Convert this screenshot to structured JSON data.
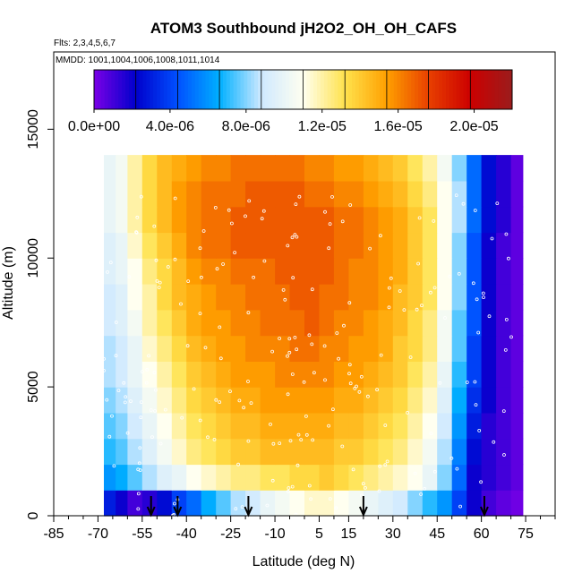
{
  "chart_data": {
    "type": "heatmap",
    "title": "ATOM3 Southbound jH2O2_OH_OH_CAFS",
    "flights_label": "Flts: 2,3,4,5,6,7",
    "dates_label": "MMDD: 1001,1004,1006,1008,1011,1014",
    "xlabel": "Latitude (deg N)",
    "ylabel": "Altitude (m)",
    "xlim": [
      -85,
      85
    ],
    "ylim": [
      0,
      18000
    ],
    "x_ticks_major": [
      -85,
      -70,
      -55,
      -40,
      -25,
      -10,
      5,
      15,
      30,
      45,
      60,
      75
    ],
    "x_ticks_minor": [
      -80,
      -75,
      -65,
      -60,
      -50,
      -45,
      -35,
      -30,
      -20,
      -15,
      -5,
      0,
      10,
      20,
      25,
      35,
      40,
      50,
      55,
      65,
      70,
      80,
      85
    ],
    "y_ticks": [
      0,
      5000,
      10000,
      15000
    ],
    "colorbar": {
      "range": [
        0,
        2.2e-05
      ],
      "tick_values": [
        0,
        4e-06,
        8e-06,
        1.2e-05,
        1.6e-05,
        2e-05
      ],
      "tick_labels": [
        "0.0e+00",
        "4.0e-06",
        "8.0e-06",
        "1.2e-05",
        "1.6e-05",
        "2.0e-05"
      ],
      "colors": [
        "#7a00e6",
        "#0000cc",
        "#0050ff",
        "#00b0ff",
        "#cfe9ff",
        "#fffff0",
        "#ffe24d",
        "#ffa000",
        "#e84000",
        "#cc0000",
        "#9b1c1c"
      ]
    },
    "profile_markers_lat": [
      -52,
      -43,
      -19,
      20,
      61
    ],
    "latitude_bins": [
      -68,
      -64,
      -60,
      -55,
      -50,
      -45,
      -40,
      -35,
      -30,
      -25,
      -20,
      -15,
      -10,
      -5,
      0,
      5,
      10,
      15,
      20,
      25,
      30,
      35,
      40,
      45,
      50,
      55,
      60,
      65,
      70
    ],
    "altitude_bins": [
      0,
      1000,
      2000,
      3000,
      4000,
      5000,
      6000,
      7000,
      8000,
      9000,
      10000,
      11000,
      12000,
      13000
    ],
    "values_e6": [
      [
        3.0,
        2.0,
        1.0,
        1.5,
        2.5,
        4.0,
        5.0,
        6.5,
        7.5,
        8.5,
        9.0,
        10.0,
        10.5,
        11.0,
        11.5,
        11.5,
        11.0,
        10.5,
        10.0,
        9.5,
        9.0,
        8.0,
        7.0,
        6.0,
        4.0,
        2.0,
        1.0,
        0.5,
        0.2
      ],
      [
        6.0,
        6.5,
        7.5,
        8.5,
        9.5,
        10.0,
        11.0,
        11.5,
        12.0,
        12.5,
        12.5,
        13.0,
        13.0,
        13.5,
        13.5,
        14.0,
        13.5,
        13.0,
        12.5,
        12.0,
        11.5,
        11.0,
        10.0,
        8.0,
        5.0,
        2.0,
        1.5,
        1.0,
        0.5
      ],
      [
        7.0,
        7.5,
        8.5,
        9.5,
        10.5,
        11.5,
        12.5,
        13.0,
        13.5,
        14.0,
        14.0,
        14.5,
        14.5,
        14.5,
        14.5,
        14.5,
        14.0,
        14.0,
        13.5,
        13.0,
        12.5,
        11.5,
        10.5,
        8.5,
        5.5,
        2.5,
        1.5,
        1.0,
        0.5
      ],
      [
        7.5,
        8.0,
        9.0,
        10.0,
        11.0,
        12.0,
        13.0,
        13.5,
        14.0,
        14.5,
        14.5,
        15.0,
        15.0,
        15.0,
        15.0,
        15.0,
        14.5,
        14.5,
        14.0,
        13.5,
        13.0,
        12.0,
        11.0,
        9.0,
        6.0,
        3.0,
        1.5,
        1.0,
        0.5
      ],
      [
        8.0,
        8.5,
        9.5,
        10.5,
        11.5,
        12.5,
        13.5,
        14.0,
        14.5,
        15.0,
        15.0,
        15.5,
        15.5,
        15.5,
        15.5,
        15.5,
        15.0,
        15.0,
        14.5,
        14.0,
        13.5,
        12.5,
        11.5,
        9.5,
        6.5,
        3.5,
        2.0,
        1.0,
        0.5
      ],
      [
        8.5,
        9.0,
        10.0,
        11.0,
        12.0,
        13.0,
        14.0,
        14.5,
        15.0,
        15.5,
        15.5,
        15.5,
        16.0,
        16.0,
        16.0,
        16.0,
        15.5,
        15.5,
        15.0,
        14.5,
        14.0,
        13.0,
        12.0,
        10.0,
        7.0,
        4.0,
        2.0,
        1.0,
        0.5
      ],
      [
        8.5,
        9.0,
        10.0,
        11.5,
        12.5,
        13.5,
        14.5,
        15.0,
        15.5,
        15.5,
        16.0,
        16.0,
        16.0,
        16.5,
        16.5,
        16.0,
        16.0,
        15.5,
        15.5,
        15.0,
        14.0,
        13.5,
        12.5,
        10.5,
        7.5,
        4.0,
        2.0,
        1.0,
        0.5
      ],
      [
        9.0,
        9.5,
        10.5,
        12.0,
        13.0,
        14.0,
        15.0,
        15.5,
        15.5,
        16.0,
        16.0,
        16.5,
        16.5,
        16.5,
        17.0,
        16.5,
        16.0,
        16.0,
        15.5,
        15.0,
        14.5,
        13.5,
        12.5,
        10.5,
        7.5,
        4.5,
        2.0,
        1.0,
        0.5
      ],
      [
        9.0,
        9.5,
        11.0,
        12.0,
        13.5,
        14.5,
        15.0,
        15.5,
        16.0,
        16.0,
        16.5,
        16.5,
        16.5,
        17.0,
        17.0,
        16.5,
        16.5,
        16.0,
        16.0,
        15.5,
        14.5,
        14.0,
        13.0,
        11.0,
        8.0,
        4.5,
        2.0,
        1.0,
        0.5
      ],
      [
        9.5,
        10.0,
        11.0,
        12.5,
        13.5,
        14.5,
        15.5,
        16.0,
        16.0,
        16.5,
        16.5,
        16.5,
        17.0,
        17.0,
        17.0,
        17.0,
        16.5,
        16.0,
        16.0,
        15.5,
        15.0,
        14.0,
        13.0,
        11.0,
        8.0,
        4.5,
        2.0,
        1.0,
        0.5
      ],
      [
        9.5,
        10.0,
        11.5,
        13.0,
        14.0,
        15.0,
        16.0,
        16.5,
        16.5,
        17.0,
        17.0,
        17.0,
        17.0,
        17.0,
        17.0,
        17.0,
        16.5,
        16.5,
        16.0,
        15.5,
        15.0,
        14.0,
        13.0,
        11.0,
        8.0,
        4.5,
        2.0,
        1.0,
        0.5
      ],
      [
        10.0,
        10.5,
        12.0,
        13.5,
        14.5,
        15.5,
        16.0,
        16.5,
        16.5,
        17.0,
        17.0,
        17.0,
        17.0,
        17.0,
        17.0,
        17.0,
        16.5,
        16.5,
        16.0,
        15.5,
        15.0,
        14.0,
        13.0,
        11.0,
        8.5,
        5.0,
        2.5,
        1.5,
        0.5
      ],
      [
        10.0,
        10.5,
        12.0,
        13.5,
        14.5,
        15.5,
        16.0,
        16.5,
        16.5,
        16.5,
        17.0,
        17.0,
        17.0,
        17.0,
        16.5,
        16.5,
        16.0,
        16.0,
        15.5,
        15.0,
        14.5,
        13.5,
        12.5,
        11.0,
        8.5,
        5.0,
        2.5,
        1.5,
        0.5
      ],
      [
        10.0,
        10.5,
        12.0,
        13.5,
        14.5,
        15.0,
        15.5,
        16.0,
        16.0,
        16.5,
        16.5,
        16.5,
        16.5,
        16.5,
        16.0,
        16.0,
        15.5,
        15.5,
        15.0,
        14.5,
        14.0,
        13.0,
        12.0,
        10.5,
        8.0,
        5.0,
        2.5,
        1.5,
        0.5
      ]
    ]
  }
}
